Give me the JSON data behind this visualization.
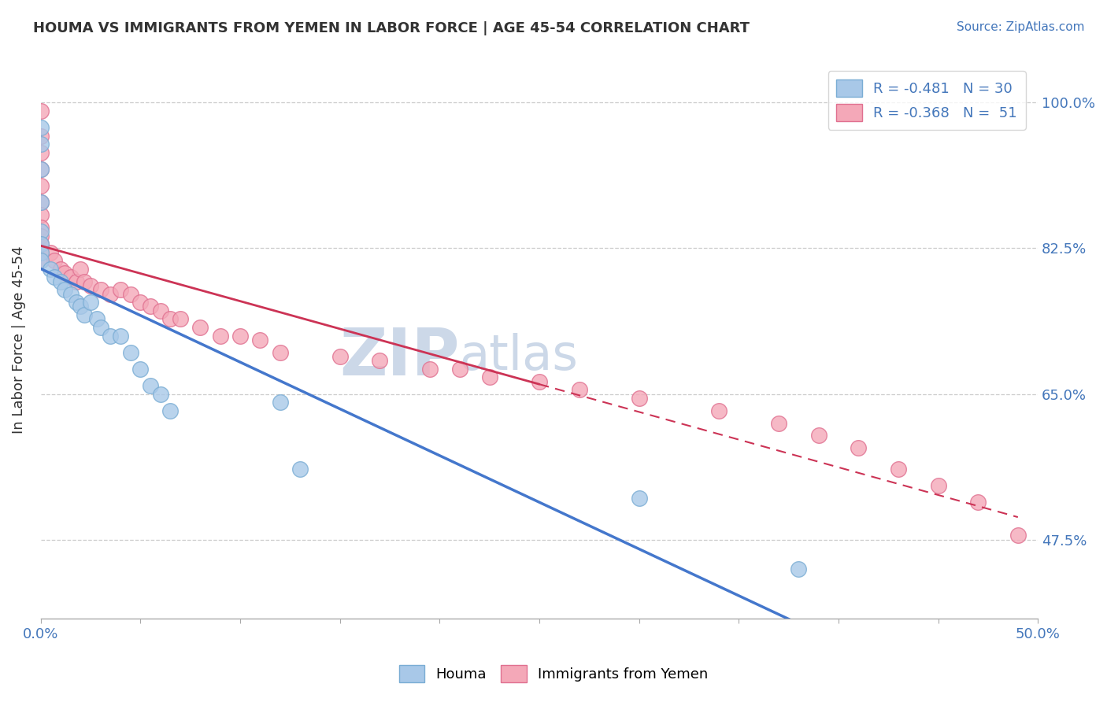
{
  "title": "HOUMA VS IMMIGRANTS FROM YEMEN IN LABOR FORCE | AGE 45-54 CORRELATION CHART",
  "source_text": "Source: ZipAtlas.com",
  "ylabel": "In Labor Force | Age 45-54",
  "xlim": [
    0.0,
    0.5
  ],
  "ylim": [
    0.38,
    1.05
  ],
  "xtick_vals": [
    0.0,
    0.05,
    0.1,
    0.15,
    0.2,
    0.25,
    0.3,
    0.35,
    0.4,
    0.45,
    0.5
  ],
  "xtick_labels": [
    "0.0%",
    "",
    "",
    "",
    "",
    "",
    "",
    "",
    "",
    "",
    "50.0%"
  ],
  "ytick_vals": [
    0.475,
    0.65,
    0.825,
    1.0
  ],
  "ytick_labels": [
    "47.5%",
    "65.0%",
    "82.5%",
    "100.0%"
  ],
  "legend_r1": "R = -0.481",
  "legend_n1": "N = 30",
  "legend_r2": "R = -0.368",
  "legend_n2": "N =  51",
  "houma_color": "#a8c8e8",
  "houma_edge_color": "#7aadd4",
  "yemen_color": "#f4a8b8",
  "yemen_edge_color": "#e07090",
  "houma_line_color": "#4477cc",
  "yemen_line_color": "#cc3355",
  "watermark_color": "#ccd8e8",
  "background_color": "#ffffff",
  "grid_color": "#cccccc",
  "houma_x": [
    0.0,
    0.0,
    0.0,
    0.0,
    0.0,
    0.0,
    0.0,
    0.0,
    0.005,
    0.007,
    0.01,
    0.012,
    0.015,
    0.018,
    0.02,
    0.022,
    0.025,
    0.028,
    0.03,
    0.035,
    0.04,
    0.045,
    0.05,
    0.055,
    0.06,
    0.065,
    0.12,
    0.13,
    0.3,
    0.38
  ],
  "houma_y": [
    0.97,
    0.95,
    0.92,
    0.88,
    0.845,
    0.83,
    0.82,
    0.81,
    0.8,
    0.79,
    0.785,
    0.775,
    0.77,
    0.76,
    0.755,
    0.745,
    0.76,
    0.74,
    0.73,
    0.72,
    0.72,
    0.7,
    0.68,
    0.66,
    0.65,
    0.63,
    0.64,
    0.56,
    0.525,
    0.44
  ],
  "yemen_x": [
    0.0,
    0.0,
    0.0,
    0.0,
    0.0,
    0.0,
    0.0,
    0.0,
    0.0,
    0.0,
    0.0,
    0.0,
    0.005,
    0.007,
    0.01,
    0.012,
    0.015,
    0.018,
    0.02,
    0.022,
    0.025,
    0.03,
    0.035,
    0.04,
    0.045,
    0.05,
    0.055,
    0.06,
    0.065,
    0.07,
    0.08,
    0.09,
    0.1,
    0.11,
    0.12,
    0.15,
    0.17,
    0.195,
    0.21,
    0.225,
    0.25,
    0.27,
    0.3,
    0.34,
    0.37,
    0.39,
    0.41,
    0.43,
    0.45,
    0.47,
    0.49
  ],
  "yemen_y": [
    0.99,
    0.96,
    0.94,
    0.92,
    0.9,
    0.88,
    0.865,
    0.85,
    0.84,
    0.83,
    0.82,
    0.81,
    0.82,
    0.81,
    0.8,
    0.795,
    0.79,
    0.785,
    0.8,
    0.785,
    0.78,
    0.775,
    0.77,
    0.775,
    0.77,
    0.76,
    0.755,
    0.75,
    0.74,
    0.74,
    0.73,
    0.72,
    0.72,
    0.715,
    0.7,
    0.695,
    0.69,
    0.68,
    0.68,
    0.67,
    0.665,
    0.655,
    0.645,
    0.63,
    0.615,
    0.6,
    0.585,
    0.56,
    0.54,
    0.52,
    0.48
  ]
}
